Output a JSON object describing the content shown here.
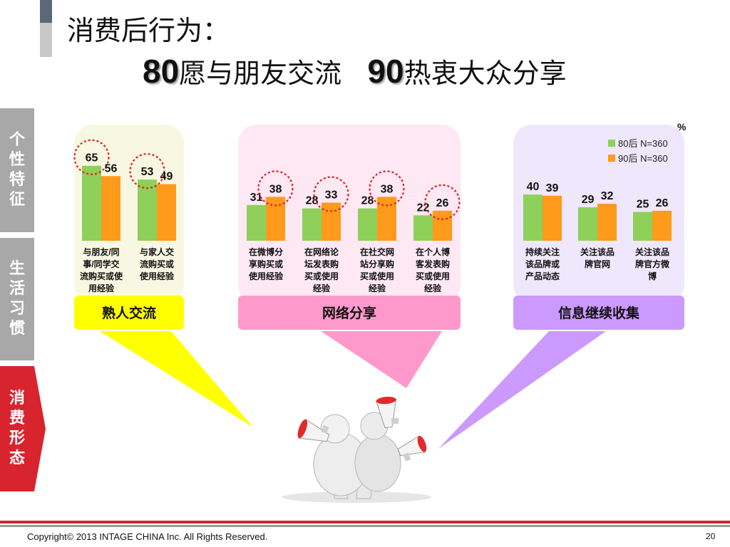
{
  "title": {
    "line1": "消费后行为：",
    "num80": "80",
    "text80": "愿与朋友交流",
    "num90": "90",
    "text90": "热衷大众分享"
  },
  "sidebar": {
    "items": [
      {
        "label": "个性特征",
        "color": "#a8a8a8"
      },
      {
        "label": "生活习惯",
        "color": "#a8a8a8"
      },
      {
        "label": "消费形态",
        "color": "#d8242e"
      }
    ]
  },
  "percent_sign": "%",
  "legend": [
    {
      "name": "80后 N=360",
      "color": "#8ed05a"
    },
    {
      "name": "90后 N=360",
      "color": "#ff9a1a"
    }
  ],
  "groups": [
    {
      "label": "熟人交流",
      "panel_color": "#f8f8e2",
      "label_bg": "#ffff00",
      "label_color": "#111111"
    },
    {
      "label": "网络分享",
      "panel_color": "#fde8f4",
      "label_bg": "#ff99cc",
      "label_color": "#111111"
    },
    {
      "label": "信息继续收集",
      "panel_color": "#efe7fb",
      "label_bg": "#cc99ff",
      "label_color": "#111111"
    }
  ],
  "chart_data": {
    "type": "bar",
    "unit": "%",
    "categories": [
      [
        "与朋友/同",
        "事/同学交",
        "流购买或使",
        "用经验"
      ],
      [
        "与家人交",
        "流购买或",
        "使用经验"
      ],
      [
        "在微博分",
        "享购买或",
        "使用经验"
      ],
      [
        "在网络论",
        "坛发表购",
        "买或使用",
        "经验"
      ],
      [
        "在社交网",
        "站分享购",
        "买或使用",
        "经验"
      ],
      [
        "在个人博",
        "客发表购",
        "买或使用",
        "经验"
      ],
      [
        "持续关注",
        "该品牌或",
        "产品动态"
      ],
      [
        "关注该品",
        "牌官网"
      ],
      [
        "关注该品",
        "牌官方微",
        "博"
      ]
    ],
    "series": [
      {
        "name": "80后 N=360",
        "values": [
          65,
          53,
          31,
          28,
          28,
          22,
          40,
          29,
          25
        ]
      },
      {
        "name": "90后 N=360",
        "values": [
          56,
          49,
          38,
          33,
          38,
          26,
          39,
          32,
          26
        ]
      }
    ],
    "highlighted": [
      [
        0,
        0
      ],
      [
        1,
        0
      ],
      [
        2,
        1
      ],
      [
        3,
        1
      ],
      [
        4,
        1
      ],
      [
        5,
        1
      ]
    ]
  },
  "footer": {
    "copyright": "Copyright© 2013 INTAGE CHINA Inc. All Rights Reserved.",
    "page": "20"
  }
}
